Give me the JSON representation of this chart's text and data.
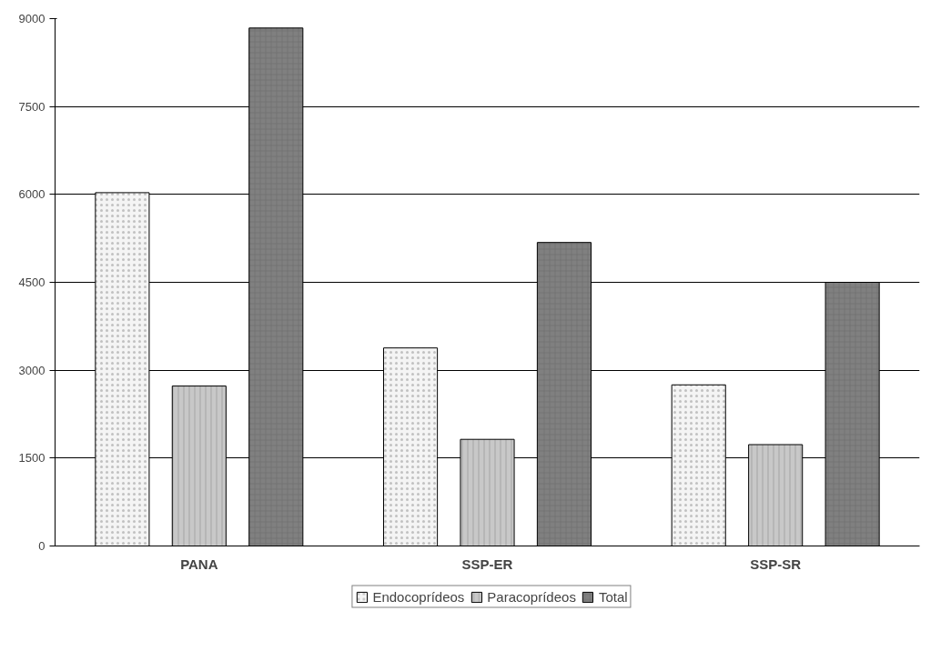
{
  "chart_data": {
    "type": "bar",
    "categories": [
      "PANA",
      "SSP-ER",
      "SSP-SR"
    ],
    "series": [
      {
        "name": "Endocoprídeos",
        "color": "#f4f4f4",
        "values": [
          6030,
          3380,
          2750
        ]
      },
      {
        "name": "Paracoprídeos",
        "color": "#c8c8c8",
        "values": [
          2730,
          1820,
          1730
        ]
      },
      {
        "name": "Total",
        "color": "#808080",
        "values": [
          8840,
          5180,
          4500
        ]
      }
    ],
    "ylim": [
      0,
      9000
    ],
    "yticks": [
      0,
      1500,
      3000,
      4500,
      6000,
      7500,
      9000
    ],
    "grid": "y",
    "legend": "bottom"
  }
}
